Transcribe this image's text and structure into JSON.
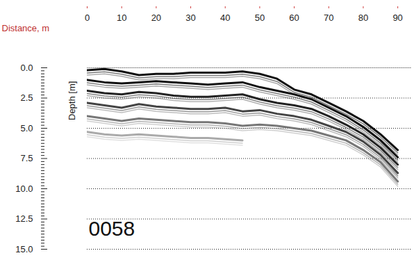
{
  "chart_data": {
    "type": "radargram",
    "x_label": "Distance, m",
    "y_label": "Depth [m]",
    "annotation": "0058",
    "xlim": [
      0,
      94
    ],
    "xticks": [
      0,
      10,
      20,
      30,
      40,
      50,
      60,
      70,
      80,
      90
    ],
    "ylim": [
      0,
      15
    ],
    "yticks": [
      {
        "value": 0,
        "label": "0.0"
      },
      2.5,
      {
        "value": 5,
        "label": "5.0"
      },
      7.5,
      {
        "value": 10,
        "label": "10.0"
      },
      12.5,
      {
        "value": 15,
        "label": "15.0"
      }
    ],
    "grid": true,
    "x": [
      0,
      5,
      10,
      15,
      20,
      25,
      30,
      35,
      40,
      45,
      50,
      55,
      60,
      65,
      70,
      75,
      80,
      85,
      90
    ],
    "series": [
      {
        "color": "#111111",
        "values": [
          0.2,
          0.1,
          0.3,
          0.6,
          0.5,
          0.5,
          0.4,
          0.4,
          0.4,
          0.3,
          0.5,
          0.9,
          1.8,
          2.2,
          2.9,
          3.6,
          4.4,
          5.5,
          6.8
        ]
      },
      {
        "color": "#111111",
        "values": [
          1.0,
          1.2,
          1.3,
          1.2,
          1.1,
          1.2,
          1.3,
          1.4,
          1.3,
          1.2,
          1.6,
          1.9,
          2.2,
          2.6,
          3.3,
          4.0,
          4.9,
          6.0,
          7.4
        ]
      },
      {
        "color": "#222222",
        "values": [
          1.9,
          2.1,
          2.2,
          2.0,
          2.1,
          2.3,
          2.4,
          2.4,
          2.3,
          2.2,
          2.6,
          2.9,
          3.1,
          3.4,
          4.0,
          4.7,
          5.5,
          6.6,
          8.0
        ]
      },
      {
        "color": "#444444",
        "values": [
          2.9,
          3.1,
          3.3,
          3.0,
          3.2,
          3.3,
          3.4,
          3.4,
          3.3,
          3.6,
          3.5,
          3.8,
          4.0,
          4.3,
          4.8,
          5.3,
          6.1,
          7.2,
          8.7
        ]
      },
      {
        "color": "#777777",
        "values": [
          4.0,
          4.2,
          4.4,
          4.2,
          4.3,
          4.4,
          4.5,
          4.5,
          4.6,
          4.8,
          4.7,
          4.8,
          5.0,
          5.2,
          5.6,
          6.0,
          6.8,
          7.8,
          9.4
        ]
      },
      {
        "color": "#aaaaaa",
        "values": [
          5.3,
          5.5,
          5.6,
          5.5,
          5.6,
          5.7,
          5.8,
          5.8,
          5.9,
          6.0,
          null,
          null,
          null,
          null,
          null,
          null,
          null,
          null,
          null
        ]
      }
    ]
  }
}
